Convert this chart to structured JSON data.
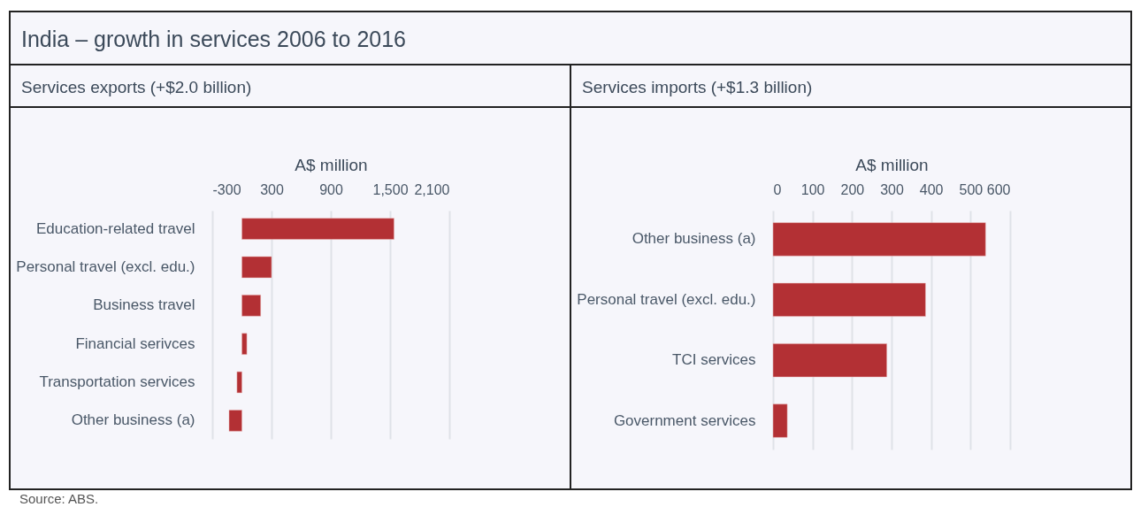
{
  "chart_data": [
    {
      "type": "bar",
      "orientation": "horizontal",
      "title": "India – growth in services 2006 to 2016",
      "subtitle": "Services exports (+$2.0 billion)",
      "xlabel": "A$ million",
      "categories": [
        "Education-related travel",
        "Personal travel (excl. edu.)",
        "Business travel",
        "Financial serivces",
        "Transportation services",
        "Other business (a)"
      ],
      "values": [
        1540,
        300,
        190,
        50,
        -50,
        -130
      ],
      "color": "#b33034",
      "xlim": [
        -300,
        2100
      ],
      "xticks": [
        -300,
        300,
        900,
        {
          "value": 1500,
          "label": "1,500"
        },
        {
          "value": 2100,
          "label": "2,100"
        }
      ],
      "grid": "x",
      "annotations": [
        "Source: ABS."
      ]
    },
    {
      "type": "bar",
      "orientation": "horizontal",
      "subtitle": "Services imports (+$1.3 billion)",
      "xlabel": "A$ million",
      "categories": [
        "Other business (a)",
        "Personal travel (excl. edu.)",
        "TCI services",
        "Government services"
      ],
      "values": [
        538,
        386,
        288,
        36
      ],
      "color": "#b33034",
      "xlim": [
        0,
        600
      ],
      "xticks": [
        0,
        100,
        200,
        300,
        400,
        500,
        600
      ],
      "grid": "x"
    }
  ]
}
